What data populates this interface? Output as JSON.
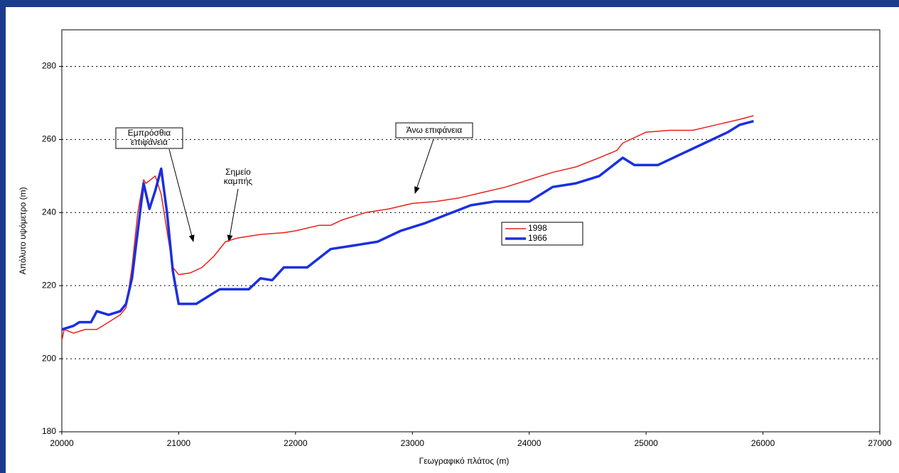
{
  "chart_data": {
    "type": "line",
    "xlabel": "Γεωγραφικό πλάτος (m)",
    "ylabel": "Απόλυτο υψόμετρο (m)",
    "xlim": [
      20000,
      27000
    ],
    "xticks": [
      20000,
      21000,
      22000,
      23000,
      24000,
      25000,
      26000,
      27000
    ],
    "ylim": [
      180,
      290
    ],
    "yticks": [
      180,
      200,
      220,
      240,
      260,
      280
    ],
    "grid": true,
    "legend": "center",
    "series": [
      {
        "name": "1998",
        "color": "#e8201c",
        "x": [
          20000,
          20020,
          20100,
          20200,
          20300,
          20400,
          20500,
          20550,
          20600,
          20650,
          20700,
          20720,
          20800,
          20850,
          20900,
          20950,
          21000,
          21100,
          21200,
          21300,
          21400,
          21500,
          21700,
          21900,
          22000,
          22200,
          22300,
          22400,
          22600,
          22800,
          23000,
          23200,
          23400,
          23600,
          23800,
          24000,
          24200,
          24400,
          24600,
          24750,
          24800,
          25000,
          25200,
          25400,
          25600,
          25800,
          25920
        ],
        "values": [
          205,
          208,
          207,
          208,
          208,
          210,
          212,
          214,
          225,
          240,
          249,
          248,
          250,
          245,
          235,
          225,
          223,
          223.5,
          225,
          228,
          232,
          233,
          234,
          234.5,
          235,
          236.5,
          236.5,
          238,
          240,
          241,
          242.5,
          243,
          244,
          245.5,
          247,
          249,
          251,
          252.5,
          255,
          257,
          259,
          262,
          262.5,
          262.5,
          264,
          265.5,
          266.5
        ]
      },
      {
        "name": "1966",
        "color": "#1a2fe0",
        "x": [
          20000,
          20100,
          20150,
          20250,
          20300,
          20400,
          20500,
          20550,
          20600,
          20650,
          20700,
          20750,
          20800,
          20850,
          20900,
          20950,
          21000,
          21150,
          21250,
          21350,
          21600,
          21700,
          21800,
          21900,
          22100,
          22300,
          22500,
          22700,
          22900,
          23100,
          23300,
          23500,
          23700,
          24000,
          24200,
          24400,
          24600,
          24800,
          24900,
          25100,
          25300,
          25500,
          25700,
          25800,
          25920
        ],
        "values": [
          208,
          209,
          210,
          210,
          213,
          212,
          213,
          215,
          222,
          235,
          248,
          241,
          246,
          252,
          240,
          224,
          215,
          215,
          217,
          219,
          219,
          222,
          221.5,
          225,
          225,
          230,
          231,
          232,
          235,
          237,
          239.5,
          242,
          243,
          243,
          247,
          248,
          250,
          255,
          253,
          253,
          256,
          259,
          262,
          264,
          265
        ]
      }
    ],
    "annotations": [
      {
        "lines": [
          "Εμπρόσθια",
          "επιφάνεια"
        ]
      },
      {
        "lines": [
          "Σημείο",
          "καμπής"
        ]
      },
      {
        "lines": [
          "Άνω επιφάνεια"
        ]
      }
    ]
  }
}
